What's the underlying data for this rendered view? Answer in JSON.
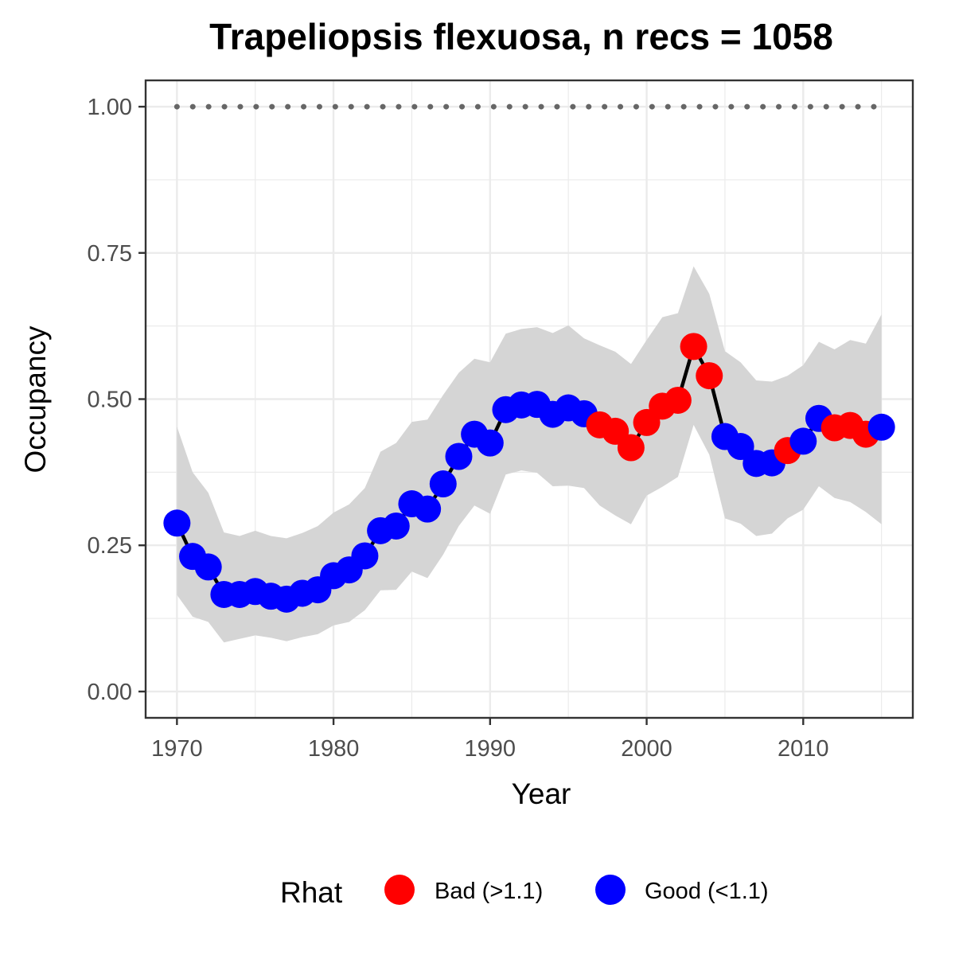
{
  "chart_data": {
    "type": "line",
    "title": "Trapeliopsis flexuosa, n recs = 1058",
    "xlabel": "Year",
    "ylabel": "Occupancy",
    "xlim": [
      1968,
      2017
    ],
    "ylim": [
      -0.045,
      1.045
    ],
    "x_ticks": [
      1970,
      1980,
      1990,
      2000,
      2010
    ],
    "x_tick_labels": [
      "1970",
      "1980",
      "1990",
      "2000",
      "2010"
    ],
    "y_ticks": [
      0,
      0.25,
      0.5,
      0.75,
      1.0
    ],
    "y_tick_labels": [
      "0.00",
      "0.25",
      "0.50",
      "0.75",
      "1.00"
    ],
    "grid": true,
    "legend": {
      "title": "Rhat",
      "position": "bottom",
      "entries": [
        {
          "label": "Bad (>1.1)",
          "color": "#ff0000"
        },
        {
          "label": "Good (<1.1)",
          "color": "#0000ff"
        }
      ]
    },
    "reference_line": {
      "y": 1.0,
      "style": "dotted",
      "color": "#666666"
    },
    "colors": {
      "bad": "#ff0000",
      "good": "#0000ff",
      "ribbon": "#d5d5d5",
      "line": "#000000"
    },
    "years": [
      1970,
      1971,
      1972,
      1973,
      1974,
      1975,
      1976,
      1977,
      1978,
      1979,
      1980,
      1981,
      1982,
      1983,
      1984,
      1985,
      1986,
      1987,
      1988,
      1989,
      1990,
      1991,
      1992,
      1993,
      1994,
      1995,
      1996,
      1997,
      1998,
      1999,
      2000,
      2001,
      2002,
      2003,
      2004,
      2005,
      2006,
      2007,
      2008,
      2009,
      2010,
      2011,
      2012,
      2013,
      2014,
      2015
    ],
    "mean": [
      0.288,
      0.231,
      0.213,
      0.166,
      0.166,
      0.171,
      0.163,
      0.158,
      0.168,
      0.174,
      0.198,
      0.208,
      0.232,
      0.275,
      0.283,
      0.321,
      0.312,
      0.355,
      0.402,
      0.44,
      0.425,
      0.482,
      0.49,
      0.491,
      0.474,
      0.485,
      0.475,
      0.456,
      0.445,
      0.417,
      0.46,
      0.488,
      0.498,
      0.59,
      0.54,
      0.436,
      0.419,
      0.39,
      0.391,
      0.412,
      0.428,
      0.467,
      0.451,
      0.455,
      0.44,
      0.452
    ],
    "lower": [
      0.165,
      0.128,
      0.119,
      0.084,
      0.09,
      0.096,
      0.092,
      0.086,
      0.093,
      0.098,
      0.113,
      0.119,
      0.139,
      0.173,
      0.174,
      0.205,
      0.194,
      0.234,
      0.283,
      0.318,
      0.304,
      0.371,
      0.378,
      0.374,
      0.351,
      0.352,
      0.348,
      0.318,
      0.301,
      0.286,
      0.335,
      0.35,
      0.367,
      0.456,
      0.405,
      0.296,
      0.287,
      0.266,
      0.27,
      0.296,
      0.311,
      0.351,
      0.331,
      0.324,
      0.307,
      0.286
    ],
    "upper": [
      0.453,
      0.375,
      0.34,
      0.272,
      0.266,
      0.275,
      0.266,
      0.262,
      0.271,
      0.283,
      0.306,
      0.32,
      0.348,
      0.41,
      0.425,
      0.461,
      0.465,
      0.507,
      0.545,
      0.569,
      0.563,
      0.612,
      0.62,
      0.623,
      0.613,
      0.626,
      0.604,
      0.592,
      0.581,
      0.56,
      0.601,
      0.64,
      0.647,
      0.727,
      0.68,
      0.582,
      0.563,
      0.532,
      0.53,
      0.54,
      0.558,
      0.598,
      0.585,
      0.601,
      0.595,
      0.645
    ],
    "rhat_status": [
      "good",
      "good",
      "good",
      "good",
      "good",
      "good",
      "good",
      "good",
      "good",
      "good",
      "good",
      "good",
      "good",
      "good",
      "good",
      "good",
      "good",
      "good",
      "good",
      "good",
      "good",
      "good",
      "good",
      "good",
      "good",
      "good",
      "good",
      "bad",
      "bad",
      "bad",
      "bad",
      "bad",
      "bad",
      "bad",
      "bad",
      "good",
      "good",
      "good",
      "good",
      "bad",
      "good",
      "good",
      "bad",
      "bad",
      "bad",
      "good"
    ]
  }
}
